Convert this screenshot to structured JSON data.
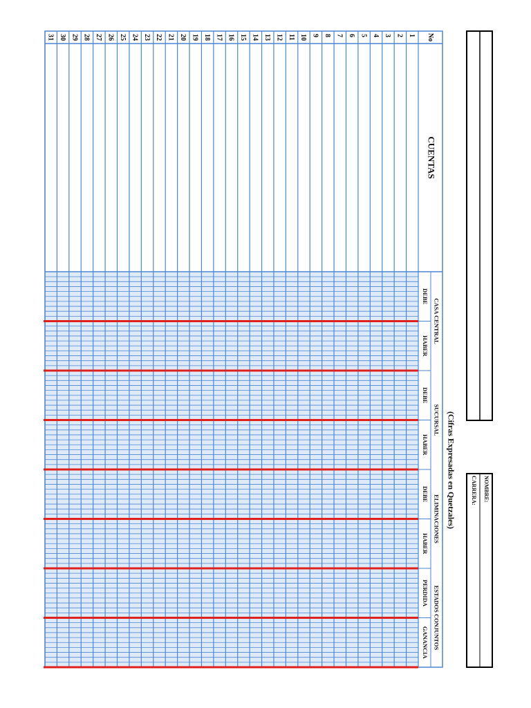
{
  "form": {
    "labels": [
      "NOMBRE:",
      "CARRERA:"
    ]
  },
  "subtitle": "(Cifras Expresadas en Quetzales)",
  "table": {
    "headers": {
      "number": "No",
      "accounts": "CUENTAS",
      "groups": [
        {
          "title": "CASA CENTRAL",
          "columns": [
            "DEBE",
            "HABER"
          ]
        },
        {
          "title": "SUCURSAL",
          "columns": [
            "DEBE",
            "HABER"
          ]
        },
        {
          "title": "ELIMINACIONES",
          "columns": [
            "DEBE",
            "HABER"
          ]
        },
        {
          "title": "ESTADOS CONJUNTOS",
          "columns": [
            "PERDIDA",
            "GANANCIA"
          ]
        }
      ]
    },
    "rows": [
      "1",
      "2",
      "3",
      "4",
      "5",
      "6",
      "7",
      "8",
      "9",
      "10",
      "11",
      "12",
      "13",
      "14",
      "15",
      "16",
      "17",
      "18",
      "19",
      "20",
      "21",
      "22",
      "23",
      "24",
      "25",
      "26",
      "27",
      "28",
      "29",
      "30",
      "31"
    ]
  }
}
